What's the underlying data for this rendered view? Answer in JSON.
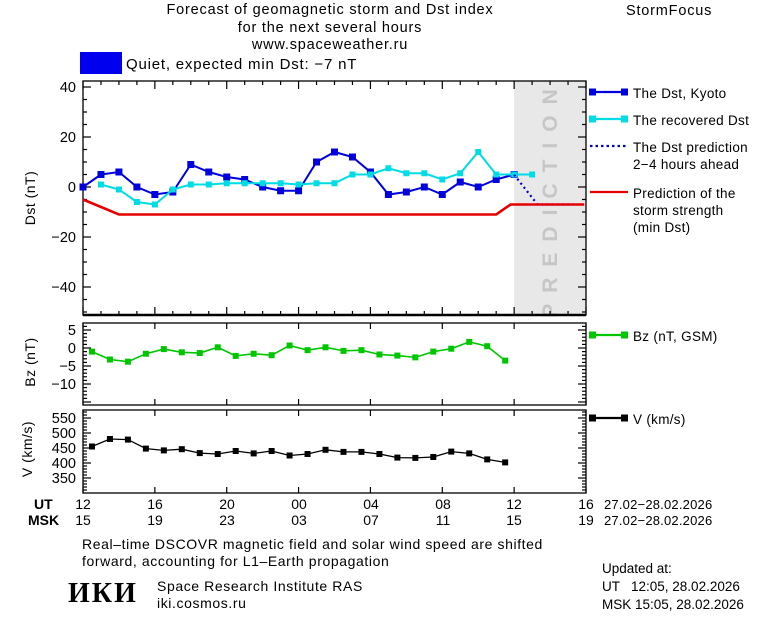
{
  "header": {
    "title_line1": "Forecast of geomagnetic storm and Dst index",
    "title_line2": "for the next several hours",
    "title_line3": "www.spaceweather.ru",
    "brand": "StormFocus"
  },
  "status": {
    "label": "Quiet, expected min Dst: −7 nT",
    "color": "#0000ee"
  },
  "legend": {
    "items": [
      {
        "id": "dst-kyoto",
        "style": "line-squares",
        "color": "#0000dd",
        "lines": [
          "The Dst, Kyoto"
        ]
      },
      {
        "id": "recovered-dst",
        "style": "line-squares",
        "color": "#00dce6",
        "lines": [
          "The recovered Dst"
        ]
      },
      {
        "id": "dst-prediction",
        "style": "dotted",
        "color": "#0000cc",
        "lines": [
          "The Dst prediction",
          "2−4 hours ahead"
        ]
      },
      {
        "id": "storm-strength",
        "style": "line",
        "color": "#e60000",
        "lines": [
          "Prediction of the",
          "storm strength",
          "(min Dst)"
        ]
      }
    ]
  },
  "panel_legends": [
    {
      "id": "bz",
      "style": "line-squares",
      "color": "#00c600",
      "label": "Bz (nT, GSM)"
    },
    {
      "id": "v",
      "style": "line-squares",
      "color": "#000000",
      "label": "V (km/s)"
    }
  ],
  "chart_data": [
    {
      "type": "line",
      "id": "dst",
      "ylabel": "Dst (nT)",
      "ylim": [
        -51,
        42
      ],
      "yticks": [
        40,
        20,
        0,
        -20,
        -40
      ],
      "xlim_hours_ut": [
        12,
        40
      ],
      "prediction_band": {
        "start_hour": 36,
        "end_hour": 40,
        "label": "PREDICTION",
        "fill": "#e8e8e8",
        "text_color": "#c6c6c6"
      },
      "series": [
        {
          "id": "dst-kyoto",
          "name": "The Dst, Kyoto",
          "color": "#0000dd",
          "marker": "square",
          "ms": 7,
          "lw": 2,
          "x": [
            12,
            13,
            14,
            15,
            16,
            17,
            18,
            19,
            20,
            21,
            22,
            23,
            24,
            25,
            26,
            27,
            28,
            29,
            30,
            31,
            32,
            33,
            34,
            35,
            36
          ],
          "values": [
            0,
            5,
            6,
            0,
            -3,
            -2,
            9,
            6,
            4,
            3,
            0,
            -1.5,
            -1.5,
            10,
            14,
            12,
            6,
            -3,
            -2,
            0,
            -3,
            2,
            0,
            3,
            5
          ]
        },
        {
          "id": "recovered-dst",
          "name": "The recovered Dst",
          "color": "#00dce6",
          "marker": "square",
          "ms": 6,
          "lw": 2,
          "x": [
            13,
            14,
            15,
            16,
            17,
            18,
            19,
            20,
            21,
            22,
            23,
            24,
            25,
            26,
            27,
            28,
            29,
            30,
            31,
            32,
            33,
            34,
            35,
            36,
            37
          ],
          "values": [
            1,
            -1,
            -6,
            -7,
            -1,
            1,
            1,
            1.5,
            1.5,
            1.5,
            1.5,
            1,
            1.5,
            1.5,
            5,
            5,
            7.5,
            5.5,
            5.5,
            3,
            5.5,
            14,
            5,
            5,
            5
          ]
        },
        {
          "id": "dst-prediction",
          "name": "The Dst prediction 2−4 hours ahead",
          "color": "#0000cc",
          "style": "dotted",
          "lw": 2.2,
          "x": [
            36,
            37.3,
            39.3
          ],
          "values": [
            4.9,
            -7,
            -7
          ]
        },
        {
          "id": "storm-strength",
          "name": "Prediction of the storm strength (min Dst)",
          "color": "#e60000",
          "lw": 2.6,
          "x": [
            12,
            14,
            35,
            35.8,
            39.9
          ],
          "values": [
            -5,
            -11,
            -11,
            -7,
            -7
          ]
        }
      ]
    },
    {
      "type": "line",
      "id": "bz",
      "ylabel": "Bz (nT)",
      "ylim": [
        -16,
        7
      ],
      "yticks": [
        5,
        0,
        -5,
        -10
      ],
      "xlim_hours_ut": [
        12,
        40
      ],
      "series": [
        {
          "id": "bz",
          "name": "Bz (nT, GSM)",
          "color": "#00c600",
          "marker": "square",
          "ms": 6,
          "lw": 1.6,
          "x": [
            12.5,
            13.5,
            14.5,
            15.5,
            16.5,
            17.5,
            18.5,
            19.5,
            20.5,
            21.5,
            22.5,
            23.5,
            24.5,
            25.5,
            26.5,
            27.5,
            28.5,
            29.5,
            30.5,
            31.5,
            32.5,
            33.5,
            34.5,
            35.5
          ],
          "values": [
            -1,
            -3.2,
            -3.8,
            -1.6,
            -0.3,
            -1.2,
            -1.4,
            0.2,
            -2.2,
            -1.6,
            -2,
            0.7,
            -0.6,
            0.2,
            -0.8,
            -0.6,
            -1.8,
            -2.1,
            -2.6,
            -1,
            -0.2,
            1.7,
            0.5,
            -3.5
          ]
        }
      ]
    },
    {
      "type": "line",
      "id": "v",
      "ylabel": "V (km/s)",
      "ylim": [
        300,
        577
      ],
      "yticks": [
        550,
        500,
        450,
        400,
        350
      ],
      "xlim_hours_ut": [
        12,
        40
      ],
      "series": [
        {
          "id": "v",
          "name": "V (km/s)",
          "color": "#000000",
          "marker": "square",
          "ms": 6,
          "lw": 1.3,
          "x": [
            12.5,
            13.5,
            14.5,
            15.5,
            16.5,
            17.5,
            18.5,
            19.5,
            20.5,
            21.5,
            22.5,
            23.5,
            24.5,
            25.5,
            26.5,
            27.5,
            28.5,
            29.5,
            30.5,
            31.5,
            32.5,
            33.5,
            34.5,
            35.5
          ],
          "values": [
            455,
            480,
            478,
            448,
            442,
            446,
            433,
            430,
            440,
            432,
            440,
            425,
            430,
            444,
            437,
            437,
            430,
            418,
            417,
            420,
            438,
            432,
            412,
            402
          ]
        }
      ]
    }
  ],
  "time_axis": {
    "ut_label": "UT",
    "msk_label": "MSK",
    "ut_hours": [
      "12",
      "16",
      "20",
      "00",
      "04",
      "08",
      "12",
      "16"
    ],
    "msk_hours": [
      "15",
      "19",
      "23",
      "03",
      "07",
      "11",
      "15",
      "19"
    ],
    "ut_date": "27.02−28.02.2026",
    "msk_date": "27.02−28.02.2026"
  },
  "footer": {
    "note_line1": "Real–time DSCOVR magnetic field and solar wind speed are shifted",
    "note_line2": "forward, accounting for L1–Earth propagation",
    "logo": "ИКИ",
    "institute": "Space Research Institute RAS",
    "site": "iki.cosmos.ru",
    "updated_label": "Updated at:",
    "updated_ut": "UT   12:05, 28.02.2026",
    "updated_msk": "MSK 15:05, 28.02.2026"
  }
}
